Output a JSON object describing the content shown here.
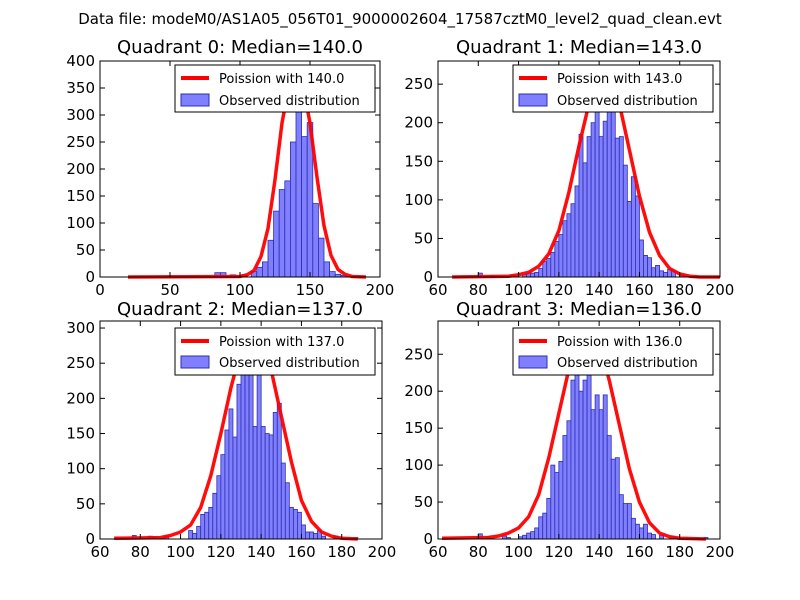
{
  "figure_title": "Data file: modeM0/AS1A05_056T01_9000002604_17587cztM0_level2_quad_clean.evt",
  "colors": {
    "bar_fill": "#8080ff",
    "bar_edge": "#2c2cb4",
    "curve": "#ff0000"
  },
  "chart_data": [
    {
      "type": "bar",
      "title": "Quadrant 0: Median=140.0",
      "median": 140.0,
      "legend": {
        "curve": "Poission with 140.0",
        "bars": "Observed distribution",
        "placement": "top-right"
      },
      "xlim": [
        0,
        200
      ],
      "ylim": [
        0,
        400
      ],
      "xticks": [
        0,
        50,
        100,
        150,
        200
      ],
      "yticks": [
        0,
        50,
        100,
        150,
        200,
        250,
        300,
        350,
        400
      ],
      "bins": [
        {
          "x0": 82,
          "x1": 86,
          "value": 8
        },
        {
          "x0": 86,
          "x1": 90,
          "value": 8
        },
        {
          "x0": 93,
          "x1": 97,
          "value": 4
        },
        {
          "x0": 101,
          "x1": 105,
          "value": 4
        },
        {
          "x0": 108,
          "x1": 112,
          "value": 10
        },
        {
          "x0": 112,
          "x1": 116,
          "value": 18
        },
        {
          "x0": 116,
          "x1": 120,
          "value": 28
        },
        {
          "x0": 120,
          "x1": 124,
          "value": 68
        },
        {
          "x0": 124,
          "x1": 128,
          "value": 122
        },
        {
          "x0": 128,
          "x1": 132,
          "value": 162
        },
        {
          "x0": 132,
          "x1": 136,
          "value": 178
        },
        {
          "x0": 136,
          "x1": 140,
          "value": 250
        },
        {
          "x0": 140,
          "x1": 144,
          "value": 350
        },
        {
          "x0": 144,
          "x1": 148,
          "value": 260
        },
        {
          "x0": 148,
          "x1": 152,
          "value": 286
        },
        {
          "x0": 152,
          "x1": 156,
          "value": 136
        },
        {
          "x0": 156,
          "x1": 160,
          "value": 72
        },
        {
          "x0": 160,
          "x1": 164,
          "value": 28
        },
        {
          "x0": 164,
          "x1": 168,
          "value": 10
        },
        {
          "x0": 168,
          "x1": 172,
          "value": 5
        },
        {
          "x0": 172,
          "x1": 176,
          "value": 3
        }
      ],
      "curve": {
        "x": [
          20,
          100,
          105,
          110,
          115,
          120,
          125,
          130,
          135,
          140,
          145,
          150,
          155,
          160,
          165,
          170,
          175,
          180,
          190
        ],
        "y": [
          0,
          1,
          4,
          12,
          38,
          90,
          180,
          285,
          355,
          380,
          355,
          285,
          185,
          95,
          40,
          14,
          5,
          1,
          0
        ]
      }
    },
    {
      "type": "bar",
      "title": "Quadrant 1: Median=143.0",
      "median": 143.0,
      "legend": {
        "curve": "Poission with 143.0",
        "bars": "Observed distribution",
        "placement": "top-right"
      },
      "xlim": [
        60,
        200
      ],
      "ylim": [
        0,
        280
      ],
      "xticks": [
        60,
        80,
        100,
        120,
        140,
        160,
        180,
        200
      ],
      "yticks": [
        0,
        50,
        100,
        150,
        200,
        250
      ],
      "bins": [
        {
          "x0": 80,
          "x1": 82,
          "value": 5
        },
        {
          "x0": 86,
          "x1": 88,
          "value": 2
        },
        {
          "x0": 96,
          "x1": 98,
          "value": 2
        },
        {
          "x0": 102,
          "x1": 104,
          "value": 3
        },
        {
          "x0": 104,
          "x1": 106,
          "value": 5
        },
        {
          "x0": 106,
          "x1": 108,
          "value": 5
        },
        {
          "x0": 108,
          "x1": 110,
          "value": 6
        },
        {
          "x0": 110,
          "x1": 112,
          "value": 11
        },
        {
          "x0": 112,
          "x1": 114,
          "value": 20
        },
        {
          "x0": 114,
          "x1": 116,
          "value": 24
        },
        {
          "x0": 116,
          "x1": 118,
          "value": 32
        },
        {
          "x0": 118,
          "x1": 120,
          "value": 46
        },
        {
          "x0": 120,
          "x1": 122,
          "value": 55
        },
        {
          "x0": 122,
          "x1": 124,
          "value": 73
        },
        {
          "x0": 124,
          "x1": 126,
          "value": 82
        },
        {
          "x0": 126,
          "x1": 128,
          "value": 95
        },
        {
          "x0": 128,
          "x1": 130,
          "value": 118
        },
        {
          "x0": 130,
          "x1": 132,
          "value": 185
        },
        {
          "x0": 132,
          "x1": 134,
          "value": 148
        },
        {
          "x0": 134,
          "x1": 136,
          "value": 182
        },
        {
          "x0": 136,
          "x1": 138,
          "value": 200
        },
        {
          "x0": 138,
          "x1": 140,
          "value": 255
        },
        {
          "x0": 140,
          "x1": 142,
          "value": 182
        },
        {
          "x0": 142,
          "x1": 144,
          "value": 202
        },
        {
          "x0": 144,
          "x1": 146,
          "value": 255
        },
        {
          "x0": 146,
          "x1": 148,
          "value": 235
        },
        {
          "x0": 148,
          "x1": 150,
          "value": 180
        },
        {
          "x0": 150,
          "x1": 152,
          "value": 182
        },
        {
          "x0": 152,
          "x1": 154,
          "value": 145
        },
        {
          "x0": 154,
          "x1": 156,
          "value": 98
        },
        {
          "x0": 156,
          "x1": 158,
          "value": 130
        },
        {
          "x0": 158,
          "x1": 160,
          "value": 105
        },
        {
          "x0": 160,
          "x1": 162,
          "value": 48
        },
        {
          "x0": 162,
          "x1": 164,
          "value": 28
        },
        {
          "x0": 164,
          "x1": 166,
          "value": 25
        },
        {
          "x0": 166,
          "x1": 168,
          "value": 12
        },
        {
          "x0": 168,
          "x1": 170,
          "value": 15
        },
        {
          "x0": 170,
          "x1": 172,
          "value": 8
        },
        {
          "x0": 172,
          "x1": 174,
          "value": 6
        },
        {
          "x0": 174,
          "x1": 176,
          "value": 10
        },
        {
          "x0": 176,
          "x1": 178,
          "value": 8
        },
        {
          "x0": 180,
          "x1": 182,
          "value": 3
        }
      ],
      "curve": {
        "x": [
          67,
          95,
          100,
          105,
          110,
          115,
          120,
          125,
          130,
          135,
          140,
          143,
          145,
          150,
          155,
          160,
          165,
          170,
          175,
          180,
          185,
          190,
          200
        ],
        "y": [
          0,
          1,
          3,
          6,
          14,
          30,
          60,
          110,
          170,
          225,
          260,
          268,
          262,
          225,
          165,
          105,
          58,
          28,
          11,
          4,
          1,
          0,
          0
        ]
      }
    },
    {
      "type": "bar",
      "title": "Quadrant 2: Median=137.0",
      "median": 137.0,
      "legend": {
        "curve": "Poission with 137.0",
        "bars": "Observed distribution",
        "placement": "top-right"
      },
      "xlim": [
        60,
        200
      ],
      "ylim": [
        0,
        310
      ],
      "xticks": [
        60,
        80,
        100,
        120,
        140,
        160,
        180,
        200
      ],
      "yticks": [
        0,
        50,
        100,
        150,
        200,
        250,
        300
      ],
      "bins": [
        {
          "x0": 76,
          "x1": 78,
          "value": 5
        },
        {
          "x0": 84,
          "x1": 86,
          "value": 4
        },
        {
          "x0": 86,
          "x1": 88,
          "value": 2
        },
        {
          "x0": 92,
          "x1": 94,
          "value": 4
        },
        {
          "x0": 104,
          "x1": 106,
          "value": 12
        },
        {
          "x0": 106,
          "x1": 108,
          "value": 8
        },
        {
          "x0": 108,
          "x1": 110,
          "value": 18
        },
        {
          "x0": 110,
          "x1": 112,
          "value": 35
        },
        {
          "x0": 112,
          "x1": 114,
          "value": 38
        },
        {
          "x0": 114,
          "x1": 116,
          "value": 45
        },
        {
          "x0": 116,
          "x1": 118,
          "value": 65
        },
        {
          "x0": 118,
          "x1": 120,
          "value": 90
        },
        {
          "x0": 120,
          "x1": 122,
          "value": 120
        },
        {
          "x0": 122,
          "x1": 124,
          "value": 155
        },
        {
          "x0": 124,
          "x1": 126,
          "value": 185
        },
        {
          "x0": 126,
          "x1": 128,
          "value": 145
        },
        {
          "x0": 128,
          "x1": 130,
          "value": 220
        },
        {
          "x0": 130,
          "x1": 132,
          "value": 245
        },
        {
          "x0": 132,
          "x1": 134,
          "value": 280
        },
        {
          "x0": 134,
          "x1": 136,
          "value": 245
        },
        {
          "x0": 136,
          "x1": 138,
          "value": 160
        },
        {
          "x0": 138,
          "x1": 140,
          "value": 280
        },
        {
          "x0": 140,
          "x1": 142,
          "value": 160
        },
        {
          "x0": 142,
          "x1": 144,
          "value": 150
        },
        {
          "x0": 144,
          "x1": 146,
          "value": 148
        },
        {
          "x0": 146,
          "x1": 148,
          "value": 180
        },
        {
          "x0": 148,
          "x1": 150,
          "value": 193
        },
        {
          "x0": 150,
          "x1": 152,
          "value": 108
        },
        {
          "x0": 152,
          "x1": 154,
          "value": 80
        },
        {
          "x0": 154,
          "x1": 156,
          "value": 45
        },
        {
          "x0": 156,
          "x1": 158,
          "value": 42
        },
        {
          "x0": 158,
          "x1": 160,
          "value": 38
        },
        {
          "x0": 160,
          "x1": 162,
          "value": 20
        },
        {
          "x0": 162,
          "x1": 164,
          "value": 10
        },
        {
          "x0": 164,
          "x1": 166,
          "value": 10
        },
        {
          "x0": 166,
          "x1": 168,
          "value": 8
        },
        {
          "x0": 168,
          "x1": 170,
          "value": 12
        },
        {
          "x0": 170,
          "x1": 172,
          "value": 4
        },
        {
          "x0": 176,
          "x1": 178,
          "value": 4
        },
        {
          "x0": 186,
          "x1": 188,
          "value": 2
        }
      ],
      "curve": {
        "x": [
          67,
          90,
          95,
          100,
          105,
          110,
          115,
          120,
          125,
          130,
          135,
          137,
          140,
          145,
          150,
          155,
          160,
          165,
          170,
          175,
          180,
          188
        ],
        "y": [
          1,
          2,
          5,
          10,
          20,
          45,
          90,
          150,
          215,
          270,
          295,
          298,
          290,
          240,
          175,
          110,
          55,
          25,
          10,
          4,
          1,
          0
        ]
      }
    },
    {
      "type": "bar",
      "title": "Quadrant 3: Median=136.0",
      "median": 136.0,
      "legend": {
        "curve": "Poission with 136.0",
        "bars": "Observed distribution",
        "placement": "top-right"
      },
      "xlim": [
        60,
        200
      ],
      "ylim": [
        0,
        295
      ],
      "xticks": [
        60,
        80,
        100,
        120,
        140,
        160,
        180,
        200
      ],
      "yticks": [
        0,
        50,
        100,
        150,
        200,
        250
      ],
      "bins": [
        {
          "x0": 80,
          "x1": 82,
          "value": 7
        },
        {
          "x0": 84,
          "x1": 86,
          "value": 3
        },
        {
          "x0": 92,
          "x1": 94,
          "value": 4
        },
        {
          "x0": 94,
          "x1": 96,
          "value": 2
        },
        {
          "x0": 100,
          "x1": 102,
          "value": 3
        },
        {
          "x0": 102,
          "x1": 104,
          "value": 5
        },
        {
          "x0": 104,
          "x1": 106,
          "value": 8
        },
        {
          "x0": 106,
          "x1": 108,
          "value": 10
        },
        {
          "x0": 108,
          "x1": 110,
          "value": 15
        },
        {
          "x0": 110,
          "x1": 112,
          "value": 30
        },
        {
          "x0": 112,
          "x1": 114,
          "value": 35
        },
        {
          "x0": 114,
          "x1": 116,
          "value": 55
        },
        {
          "x0": 116,
          "x1": 118,
          "value": 100
        },
        {
          "x0": 118,
          "x1": 120,
          "value": 90
        },
        {
          "x0": 120,
          "x1": 122,
          "value": 105
        },
        {
          "x0": 122,
          "x1": 124,
          "value": 140
        },
        {
          "x0": 124,
          "x1": 126,
          "value": 160
        },
        {
          "x0": 126,
          "x1": 128,
          "value": 215
        },
        {
          "x0": 128,
          "x1": 130,
          "value": 260
        },
        {
          "x0": 130,
          "x1": 132,
          "value": 200
        },
        {
          "x0": 132,
          "x1": 134,
          "value": 215
        },
        {
          "x0": 134,
          "x1": 136,
          "value": 258
        },
        {
          "x0": 136,
          "x1": 138,
          "value": 175
        },
        {
          "x0": 138,
          "x1": 140,
          "value": 195
        },
        {
          "x0": 140,
          "x1": 142,
          "value": 175
        },
        {
          "x0": 142,
          "x1": 144,
          "value": 195
        },
        {
          "x0": 144,
          "x1": 146,
          "value": 140
        },
        {
          "x0": 146,
          "x1": 148,
          "value": 108
        },
        {
          "x0": 148,
          "x1": 150,
          "value": 110
        },
        {
          "x0": 150,
          "x1": 152,
          "value": 60
        },
        {
          "x0": 152,
          "x1": 154,
          "value": 48
        },
        {
          "x0": 154,
          "x1": 156,
          "value": 48
        },
        {
          "x0": 156,
          "x1": 158,
          "value": 28
        },
        {
          "x0": 158,
          "x1": 160,
          "value": 20
        },
        {
          "x0": 160,
          "x1": 162,
          "value": 15
        },
        {
          "x0": 162,
          "x1": 164,
          "value": 20
        },
        {
          "x0": 164,
          "x1": 166,
          "value": 8
        },
        {
          "x0": 166,
          "x1": 168,
          "value": 6
        },
        {
          "x0": 170,
          "x1": 172,
          "value": 5
        },
        {
          "x0": 176,
          "x1": 178,
          "value": 3
        },
        {
          "x0": 192,
          "x1": 194,
          "value": 2
        }
      ],
      "curve": {
        "x": [
          62,
          85,
          90,
          95,
          100,
          105,
          110,
          115,
          120,
          125,
          130,
          135,
          136,
          140,
          145,
          150,
          155,
          160,
          165,
          170,
          175,
          180,
          193
        ],
        "y": [
          1,
          2,
          4,
          8,
          15,
          30,
          60,
          110,
          170,
          230,
          268,
          280,
          281,
          265,
          215,
          155,
          95,
          50,
          22,
          8,
          3,
          1,
          0
        ]
      }
    }
  ]
}
